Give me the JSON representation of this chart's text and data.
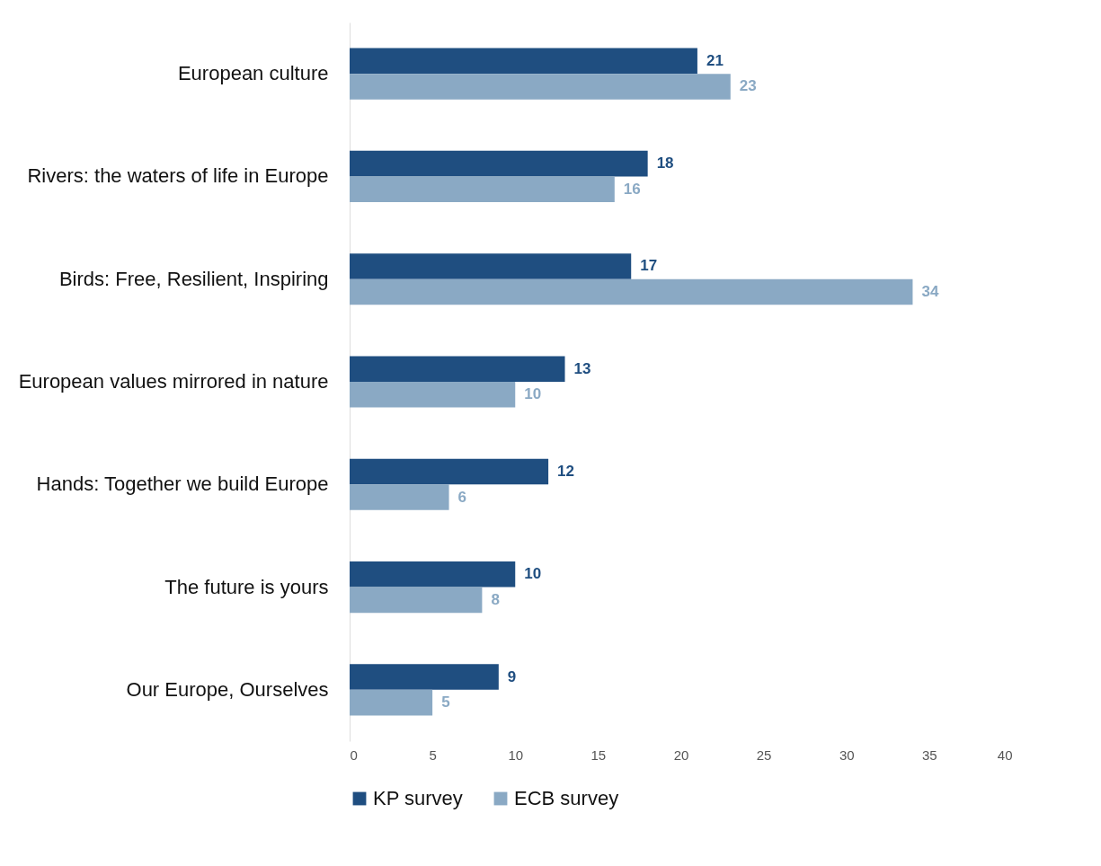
{
  "chart_data": {
    "type": "bar",
    "orientation": "horizontal",
    "categories": [
      "European culture",
      "Rivers: the waters of life in Europe",
      "Birds: Free, Resilient, Inspiring",
      "European values mirrored in nature",
      "Hands: Together we build Europe",
      "The future is yours",
      "Our Europe, Ourselves"
    ],
    "series": [
      {
        "name": "KP survey",
        "color": "#1f4e80",
        "values": [
          21,
          18,
          17,
          13,
          12,
          10,
          9
        ]
      },
      {
        "name": "ECB survey",
        "color": "#8aa9c4",
        "values": [
          23,
          16,
          34,
          10,
          6,
          8,
          5
        ]
      }
    ],
    "xlim": [
      0,
      40
    ],
    "xticks": [
      0,
      5,
      10,
      15,
      20,
      25,
      30,
      35,
      40
    ],
    "grid": false,
    "legend": "bottom",
    "data_labels": true
  }
}
